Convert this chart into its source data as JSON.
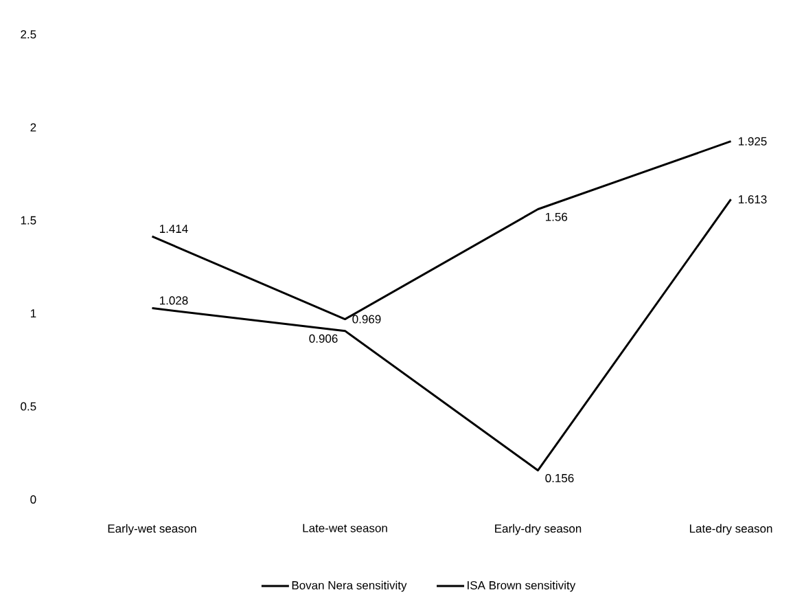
{
  "chart_data": {
    "type": "line",
    "categories": [
      "Early-wet season",
      "Late-wet season",
      "Early-dry season",
      "Late-dry season"
    ],
    "series": [
      {
        "name": "Bovan Nera sensitivity",
        "color": "#000000",
        "values": [
          1.414,
          0.969,
          1.56,
          1.925
        ]
      },
      {
        "name": "ISA Brown sensitivity",
        "color": "#000000",
        "values": [
          1.028,
          0.906,
          0.156,
          1.613
        ]
      }
    ],
    "ylim": [
      0,
      2.5
    ],
    "yticks": [
      0,
      0.5,
      1,
      1.5,
      2,
      2.5
    ],
    "data_labels": true,
    "legend": "bottom",
    "marker": "none",
    "line_style": "solid"
  }
}
